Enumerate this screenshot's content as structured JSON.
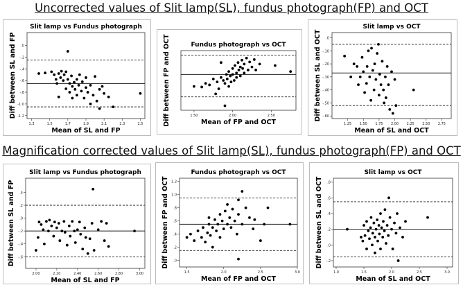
{
  "section_titles": [
    "Uncorrected values of Slit lamp(SL), fundus photograph(FP) and OCT",
    "Magnification corrected values of Slit lamp(SL), fundus photograph(FP) and OCT"
  ],
  "chart_data": [
    {
      "type": "scatter",
      "title": "Slit lamp vs Fundus photograph",
      "xlabel": "Mean of SL and FP",
      "ylabel": "Diff between SL and FP",
      "xlim": [
        1.25,
        2.55
      ],
      "ylim": [
        -1.25,
        0.22
      ],
      "xticks": [
        {
          "v": 1.3,
          "l": "1.3"
        },
        {
          "v": 1.5,
          "l": "1.5"
        },
        {
          "v": 1.7,
          "l": "1.7"
        },
        {
          "v": 1.9,
          "l": "1.9"
        },
        {
          "v": 2.1,
          "l": "2.1"
        },
        {
          "v": 2.3,
          "l": "2.3"
        },
        {
          "v": 2.5,
          "l": "2.5"
        }
      ],
      "yticks": [
        {
          "v": 0.0,
          "l": ".0"
        },
        {
          "v": -0.2,
          "l": "-.2"
        },
        {
          "v": -0.4,
          "l": "-.4"
        },
        {
          "v": -0.6,
          "l": "-.6"
        },
        {
          "v": -0.8,
          "l": "-.8"
        },
        {
          "v": -1.0,
          "l": "-1.0"
        },
        {
          "v": -1.2,
          "l": "-1.2"
        }
      ],
      "mean_line": -0.65,
      "limit_lines": [
        -0.25,
        -1.05
      ],
      "grid": false,
      "points": [
        [
          1.38,
          -0.48
        ],
        [
          1.45,
          -0.47
        ],
        [
          1.52,
          -0.45
        ],
        [
          1.55,
          -0.5
        ],
        [
          1.57,
          -0.58
        ],
        [
          1.58,
          -0.65
        ],
        [
          1.6,
          -0.48
        ],
        [
          1.6,
          -0.88
        ],
        [
          1.62,
          -0.55
        ],
        [
          1.63,
          -0.44
        ],
        [
          1.65,
          -0.6
        ],
        [
          1.66,
          -0.5
        ],
        [
          1.68,
          -0.45
        ],
        [
          1.68,
          -0.74
        ],
        [
          1.7,
          -0.58
        ],
        [
          1.7,
          -0.1
        ],
        [
          1.72,
          -0.65
        ],
        [
          1.72,
          -0.8
        ],
        [
          1.74,
          -0.52
        ],
        [
          1.75,
          -0.7
        ],
        [
          1.75,
          -0.9
        ],
        [
          1.77,
          -0.63
        ],
        [
          1.78,
          -0.75
        ],
        [
          1.8,
          -0.58
        ],
        [
          1.8,
          -0.85
        ],
        [
          1.82,
          -0.68
        ],
        [
          1.83,
          -0.5
        ],
        [
          1.85,
          -0.78
        ],
        [
          1.86,
          -0.62
        ],
        [
          1.88,
          -0.9
        ],
        [
          1.9,
          -0.72
        ],
        [
          1.9,
          -0.55
        ],
        [
          1.92,
          -0.8
        ],
        [
          1.95,
          -1.0
        ],
        [
          1.95,
          -0.68
        ],
        [
          1.98,
          -0.85
        ],
        [
          2.0,
          -0.53
        ],
        [
          2.02,
          -0.95
        ],
        [
          2.05,
          -0.75
        ],
        [
          2.05,
          -1.08
        ],
        [
          2.08,
          -0.7
        ],
        [
          2.1,
          -0.82
        ],
        [
          2.15,
          -0.88
        ],
        [
          2.2,
          -1.05
        ],
        [
          2.5,
          -0.82
        ]
      ]
    },
    {
      "type": "scatter",
      "title": "Fundus photograph vs OCT",
      "xlabel": "Mean of FP and OCT",
      "ylabel": "Diff between FP and OCT",
      "xlim": [
        1.33,
        2.82
      ],
      "ylim": [
        -0.9,
        1.1
      ],
      "xticks": [
        {
          "v": 1.5,
          "l": "1.50"
        },
        {
          "v": 2.0,
          "l": "2.00"
        },
        {
          "v": 2.5,
          "l": "2.50"
        }
      ],
      "yticks": [],
      "mean_line": 0.3,
      "limit_lines": [
        0.95,
        -0.45
      ],
      "grid": false,
      "points": [
        [
          1.5,
          -0.1
        ],
        [
          1.6,
          -0.12
        ],
        [
          1.65,
          0.0
        ],
        [
          1.7,
          -0.05
        ],
        [
          1.75,
          0.15
        ],
        [
          1.78,
          -0.35
        ],
        [
          1.8,
          0.05
        ],
        [
          1.82,
          -0.18
        ],
        [
          1.85,
          0.2
        ],
        [
          1.85,
          0.7
        ],
        [
          1.88,
          0.1
        ],
        [
          1.9,
          0.0
        ],
        [
          1.9,
          -0.75
        ],
        [
          1.92,
          0.3
        ],
        [
          1.93,
          0.15
        ],
        [
          1.95,
          0.4
        ],
        [
          1.95,
          -0.1
        ],
        [
          1.97,
          0.25
        ],
        [
          1.98,
          0.05
        ],
        [
          2.0,
          0.5
        ],
        [
          2.0,
          0.3
        ],
        [
          2.02,
          0.1
        ],
        [
          2.03,
          0.6
        ],
        [
          2.05,
          0.35
        ],
        [
          2.05,
          0.2
        ],
        [
          2.07,
          0.7
        ],
        [
          2.08,
          0.45
        ],
        [
          2.1,
          0.55
        ],
        [
          2.1,
          0.25
        ],
        [
          2.12,
          0.78
        ],
        [
          2.13,
          0.5
        ],
        [
          2.15,
          0.35
        ],
        [
          2.15,
          0.65
        ],
        [
          2.18,
          0.85
        ],
        [
          2.2,
          0.45
        ],
        [
          2.22,
          0.72
        ],
        [
          2.25,
          0.55
        ],
        [
          2.28,
          0.8
        ],
        [
          2.3,
          0.45
        ],
        [
          2.35,
          0.65
        ],
        [
          2.55,
          0.6
        ],
        [
          2.75,
          0.4
        ]
      ]
    },
    {
      "type": "scatter",
      "title": "Slit lamp vs OCT",
      "xlabel": "Mean of SL and OCT",
      "ylabel": "Diff between SL and OCT",
      "xlim": [
        1.0,
        2.9
      ],
      "ylim": [
        -0.62,
        0.04
      ],
      "xticks": [
        {
          "v": 1.25,
          "l": "1.25"
        },
        {
          "v": 1.5,
          "l": "1.50"
        },
        {
          "v": 1.75,
          "l": "1.75"
        },
        {
          "v": 2.0,
          "l": "2.00"
        },
        {
          "v": 2.25,
          "l": "2.25"
        },
        {
          "v": 2.5,
          "l": "2.50"
        },
        {
          "v": 2.75,
          "l": "2.75"
        }
      ],
      "yticks": [
        {
          "v": 0.0,
          "l": ".0"
        },
        {
          "v": -0.1,
          "l": "-.10"
        },
        {
          "v": -0.2,
          "l": "-.20"
        },
        {
          "v": -0.3,
          "l": "-.30"
        },
        {
          "v": -0.4,
          "l": "-.40"
        },
        {
          "v": -0.5,
          "l": "-.50"
        },
        {
          "v": -0.6,
          "l": "-.60"
        }
      ],
      "mean_line": -0.27,
      "limit_lines": [
        -0.05,
        -0.52
      ],
      "grid": false,
      "points": [
        [
          1.2,
          -0.14
        ],
        [
          1.3,
          -0.3
        ],
        [
          1.35,
          -0.2
        ],
        [
          1.4,
          -0.22
        ],
        [
          1.42,
          -0.36
        ],
        [
          1.45,
          -0.3
        ],
        [
          1.48,
          -0.15
        ],
        [
          1.5,
          -0.26
        ],
        [
          1.52,
          -0.42
        ],
        [
          1.55,
          -0.35
        ],
        [
          1.56,
          -0.22
        ],
        [
          1.58,
          -0.1
        ],
        [
          1.6,
          -0.3
        ],
        [
          1.62,
          -0.48
        ],
        [
          1.63,
          -0.08
        ],
        [
          1.65,
          -0.25
        ],
        [
          1.67,
          -0.4
        ],
        [
          1.68,
          -0.2
        ],
        [
          1.7,
          -0.32
        ],
        [
          1.72,
          -0.12
        ],
        [
          1.74,
          -0.05
        ],
        [
          1.75,
          -0.44
        ],
        [
          1.76,
          -0.28
        ],
        [
          1.78,
          -0.36
        ],
        [
          1.8,
          -0.18
        ],
        [
          1.82,
          -0.4
        ],
        [
          1.83,
          -0.5
        ],
        [
          1.85,
          -0.3
        ],
        [
          1.86,
          -0.46
        ],
        [
          1.88,
          -0.22
        ],
        [
          1.9,
          -0.36
        ],
        [
          1.92,
          -0.55
        ],
        [
          1.95,
          -0.26
        ],
        [
          1.97,
          -0.58
        ],
        [
          2.0,
          -0.32
        ],
        [
          2.02,
          -0.52
        ],
        [
          2.3,
          -0.4
        ]
      ]
    },
    {
      "type": "scatter",
      "title": "Slit lamp vs Fundus photograph",
      "xlabel": "Mean of SL and FP",
      "ylabel": "Diff between SL and FP",
      "xlim": [
        1.9,
        3.05
      ],
      "ylim": [
        -0.78,
        0.62
      ],
      "xticks": [
        {
          "v": 2.0,
          "l": "2.00"
        },
        {
          "v": 2.2,
          "l": "2.20"
        },
        {
          "v": 2.4,
          "l": "2.40"
        },
        {
          "v": 2.6,
          "l": "2.60"
        },
        {
          "v": 2.8,
          "l": "2.80"
        },
        {
          "v": 3.0,
          "l": "3.00"
        }
      ],
      "yticks": [
        {
          "v": 0.4,
          "l": ".4"
        },
        {
          "v": 0.2,
          "l": ".2"
        },
        {
          "v": 0.0,
          "l": ".0"
        },
        {
          "v": -0.2,
          "l": "-.2"
        },
        {
          "v": -0.4,
          "l": "-.4"
        },
        {
          "v": -0.6,
          "l": "-.6"
        }
      ],
      "mean_line": -0.2,
      "limit_lines": [
        0.2,
        -0.6
      ],
      "grid": false,
      "points": [
        [
          2.0,
          -0.5
        ],
        [
          2.02,
          -0.3
        ],
        [
          2.03,
          -0.06
        ],
        [
          2.05,
          -0.1
        ],
        [
          2.07,
          -0.18
        ],
        [
          2.08,
          -0.4
        ],
        [
          2.1,
          -0.05
        ],
        [
          2.12,
          -0.2
        ],
        [
          2.13,
          -0.03
        ],
        [
          2.15,
          -0.12
        ],
        [
          2.17,
          -0.28
        ],
        [
          2.18,
          -0.06
        ],
        [
          2.2,
          -0.15
        ],
        [
          2.22,
          -0.08
        ],
        [
          2.23,
          -0.35
        ],
        [
          2.25,
          -0.2
        ],
        [
          2.27,
          -0.05
        ],
        [
          2.28,
          -0.22
        ],
        [
          2.3,
          -0.42
        ],
        [
          2.32,
          -0.12
        ],
        [
          2.33,
          -0.28
        ],
        [
          2.35,
          -0.05
        ],
        [
          2.37,
          -0.2
        ],
        [
          2.38,
          -0.38
        ],
        [
          2.4,
          -0.18
        ],
        [
          2.42,
          -0.06
        ],
        [
          2.43,
          -0.25
        ],
        [
          2.45,
          -0.48
        ],
        [
          2.47,
          -0.15
        ],
        [
          2.48,
          -0.3
        ],
        [
          2.5,
          -0.55
        ],
        [
          2.52,
          -0.32
        ],
        [
          2.54,
          -0.08
        ],
        [
          2.55,
          0.45
        ],
        [
          2.56,
          -0.5
        ],
        [
          2.6,
          -0.18
        ],
        [
          2.63,
          -0.05
        ],
        [
          2.66,
          -0.35
        ],
        [
          2.68,
          -0.08
        ],
        [
          2.7,
          -0.44
        ],
        [
          2.95,
          -0.2
        ]
      ]
    },
    {
      "type": "scatter",
      "title": "Fundus photograph vs OCT",
      "xlabel": "Mean of FP and OCT",
      "ylabel": "Diff between FP and OCT",
      "xlim": [
        1.4,
        3.0
      ],
      "ylim": [
        -0.1,
        1.25
      ],
      "xticks": [
        {
          "v": 1.5,
          "l": "1.5"
        },
        {
          "v": 2.0,
          "l": "2.0"
        },
        {
          "v": 2.5,
          "l": "2.5"
        },
        {
          "v": 3.0,
          "l": "3.0"
        }
      ],
      "yticks": [
        {
          "v": 1.2,
          "l": "1.2"
        },
        {
          "v": 1.0,
          "l": "1.0"
        },
        {
          "v": 0.8,
          "l": ".8"
        },
        {
          "v": 0.6,
          "l": ".6"
        },
        {
          "v": 0.4,
          "l": ".4"
        },
        {
          "v": 0.2,
          "l": ".2"
        },
        {
          "v": 0.0,
          "l": ".0"
        }
      ],
      "mean_line": 0.55,
      "limit_lines": [
        0.95,
        0.15
      ],
      "grid": false,
      "points": [
        [
          1.5,
          0.35
        ],
        [
          1.55,
          0.4
        ],
        [
          1.6,
          0.3
        ],
        [
          1.65,
          0.45
        ],
        [
          1.7,
          0.35
        ],
        [
          1.72,
          0.5
        ],
        [
          1.75,
          0.28
        ],
        [
          1.78,
          0.42
        ],
        [
          1.8,
          0.55
        ],
        [
          1.8,
          0.65
        ],
        [
          1.82,
          0.38
        ],
        [
          1.85,
          0.5
        ],
        [
          1.85,
          0.2
        ],
        [
          1.88,
          0.62
        ],
        [
          1.9,
          0.45
        ],
        [
          1.92,
          0.55
        ],
        [
          1.95,
          0.7
        ],
        [
          1.95,
          0.35
        ],
        [
          1.98,
          0.6
        ],
        [
          2.0,
          0.48
        ],
        [
          2.02,
          0.75
        ],
        [
          2.05,
          0.55
        ],
        [
          2.05,
          0.85
        ],
        [
          2.08,
          0.65
        ],
        [
          2.1,
          0.5
        ],
        [
          2.12,
          0.78
        ],
        [
          2.15,
          0.6
        ],
        [
          2.18,
          0.4
        ],
        [
          2.2,
          0.92
        ],
        [
          2.2,
          0.7
        ],
        [
          2.25,
          1.05
        ],
        [
          2.25,
          0.55
        ],
        [
          2.3,
          0.8
        ],
        [
          2.35,
          0.65
        ],
        [
          2.4,
          0.48
        ],
        [
          2.42,
          0.62
        ],
        [
          2.5,
          0.3
        ],
        [
          2.55,
          0.55
        ],
        [
          2.6,
          0.8
        ],
        [
          2.9,
          0.55
        ],
        [
          2.2,
          0.02
        ]
      ]
    },
    {
      "type": "scatter",
      "title": "Slit lamp vs OCT",
      "xlabel": "Mean of SL and OCT",
      "ylabel": "Diff between SL and OCT",
      "xlim": [
        0.95,
        3.1
      ],
      "ylim": [
        -0.28,
        0.85
      ],
      "xticks": [
        {
          "v": 1.0,
          "l": "1.0"
        },
        {
          "v": 1.5,
          "l": "1.5"
        },
        {
          "v": 2.0,
          "l": "2.0"
        },
        {
          "v": 2.5,
          "l": "2.5"
        },
        {
          "v": 3.0,
          "l": "3.0"
        }
      ],
      "yticks": [
        {
          "v": 0.8,
          "l": ".8"
        },
        {
          "v": 0.6,
          "l": ".6"
        },
        {
          "v": 0.4,
          "l": ".4"
        },
        {
          "v": 0.2,
          "l": ".2"
        },
        {
          "v": 0.0,
          "l": ".0"
        },
        {
          "v": -0.2,
          "l": "-.2"
        }
      ],
      "mean_line": 0.2,
      "limit_lines": [
        0.55,
        -0.15
      ],
      "grid": false,
      "points": [
        [
          1.2,
          0.2
        ],
        [
          1.45,
          0.1
        ],
        [
          1.48,
          0.05
        ],
        [
          1.5,
          0.25
        ],
        [
          1.52,
          0.12
        ],
        [
          1.55,
          -0.05
        ],
        [
          1.55,
          0.3
        ],
        [
          1.58,
          0.18
        ],
        [
          1.6,
          0.08
        ],
        [
          1.62,
          0.22
        ],
        [
          1.63,
          0.35
        ],
        [
          1.65,
          0.0
        ],
        [
          1.66,
          0.15
        ],
        [
          1.68,
          0.28
        ],
        [
          1.7,
          0.1
        ],
        [
          1.7,
          -0.1
        ],
        [
          1.72,
          0.2
        ],
        [
          1.74,
          0.32
        ],
        [
          1.75,
          0.05
        ],
        [
          1.77,
          0.25
        ],
        [
          1.78,
          0.14
        ],
        [
          1.8,
          0.4
        ],
        [
          1.8,
          -0.05
        ],
        [
          1.82,
          0.22
        ],
        [
          1.84,
          0.1
        ],
        [
          1.85,
          0.3
        ],
        [
          1.87,
          0.18
        ],
        [
          1.88,
          0.45
        ],
        [
          1.9,
          0.02
        ],
        [
          1.92,
          0.25
        ],
        [
          1.94,
          0.12
        ],
        [
          1.95,
          0.6
        ],
        [
          1.97,
          0.35
        ],
        [
          2.0,
          0.2
        ],
        [
          2.02,
          -0.05
        ],
        [
          2.05,
          0.28
        ],
        [
          2.08,
          0.15
        ],
        [
          2.1,
          0.4
        ],
        [
          2.12,
          -0.2
        ],
        [
          2.15,
          0.22
        ],
        [
          2.2,
          0.1
        ],
        [
          2.25,
          0.3
        ],
        [
          2.65,
          0.35
        ]
      ]
    }
  ]
}
